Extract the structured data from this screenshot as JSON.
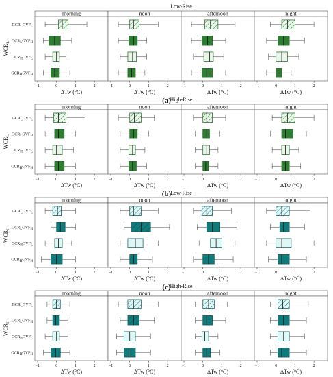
{
  "figure": {
    "panels": [
      {
        "letter": "(a)",
        "title": "Low-Rise",
        "ylabel_main": "WCR",
        "ylabel_sub": "L",
        "facecolor": "#2e7d32",
        "lightcolor": "#e8f5e9"
      },
      {
        "letter": "(b)",
        "title": "High-Rise",
        "ylabel_main": "WCR",
        "ylabel_sub": "L",
        "facecolor": "#2e7d32",
        "lightcolor": "#e8f5e9"
      },
      {
        "letter": "(c)",
        "title": "Low-Rise",
        "ylabel_main": "WCR",
        "ylabel_sub": "H",
        "facecolor": "#117a7a",
        "lightcolor": "#e0f7f7"
      },
      {
        "letter": "(d)",
        "title": "High-Rise",
        "ylabel_main": "WCR",
        "ylabel_sub": "H",
        "facecolor": "#117a7a",
        "lightcolor": "#e0f7f7"
      }
    ],
    "periods": [
      "morning",
      "noon",
      "afternoon",
      "night"
    ],
    "categories": [
      {
        "a": "GCR",
        "as": "L",
        "b": "GVF",
        "bs": "L",
        "style": "hatched-light"
      },
      {
        "a": "GCR",
        "as": "L",
        "b": "GVF",
        "bs": "H",
        "style": "solid"
      },
      {
        "a": "GCR",
        "as": "H",
        "b": "GVF",
        "bs": "L",
        "style": "light"
      },
      {
        "a": "GCR",
        "as": "H",
        "b": "GVF",
        "bs": "H",
        "style": "solid"
      }
    ],
    "xlabel": "ΔTw (°C)",
    "xticks": [
      "−1",
      "0",
      "1",
      "2"
    ]
  },
  "chart_data": [
    {
      "type": "box",
      "title": "Low-Rise",
      "ylabel": "WCR_L",
      "xlabel": "ΔTw (°C)",
      "xlim": [
        -1,
        2.5
      ],
      "categories": [
        "GCR_L GVF_L",
        "GCR_L GVF_H",
        "GCR_H GVF_L",
        "GCR_H GVF_H"
      ],
      "series": [
        {
          "name": "morning",
          "boxes": [
            {
              "whislo": -0.6,
              "q1": 0.1,
              "med": 0.3,
              "q3": 0.6,
              "whishi": 1.6
            },
            {
              "whislo": -0.7,
              "q1": -0.4,
              "med": -0.1,
              "q3": 0.2,
              "whishi": 0.8
            },
            {
              "whislo": -0.6,
              "q1": -0.2,
              "med": 0.0,
              "q3": 0.15,
              "whishi": 0.5
            },
            {
              "whislo": -0.7,
              "q1": -0.3,
              "med": -0.1,
              "q3": 0.15,
              "whishi": 0.7
            }
          ]
        },
        {
          "name": "noon",
          "boxes": [
            {
              "whislo": -0.6,
              "q1": 0.0,
              "med": 0.2,
              "q3": 0.5,
              "whishi": 1.5
            },
            {
              "whislo": -0.6,
              "q1": -0.05,
              "med": 0.2,
              "q3": 0.4,
              "whishi": 0.9
            },
            {
              "whislo": -0.5,
              "q1": -0.1,
              "med": 0.15,
              "q3": 0.35,
              "whishi": 0.9
            },
            {
              "whislo": -0.6,
              "q1": -0.1,
              "med": 0.1,
              "q3": 0.3,
              "whishi": 0.8
            }
          ]
        },
        {
          "name": "afternoon",
          "boxes": [
            {
              "whislo": -0.6,
              "q1": 0.1,
              "med": 0.4,
              "q3": 0.8,
              "whishi": 1.7
            },
            {
              "whislo": -0.6,
              "q1": -0.05,
              "med": 0.25,
              "q3": 0.5,
              "whishi": 1.2
            },
            {
              "whislo": -0.5,
              "q1": 0.05,
              "med": 0.35,
              "q3": 0.55,
              "whishi": 1.1
            },
            {
              "whislo": -0.6,
              "q1": -0.05,
              "med": 0.2,
              "q3": 0.5,
              "whishi": 1.2
            }
          ]
        },
        {
          "name": "night",
          "boxes": [
            {
              "whislo": -0.3,
              "q1": 0.3,
              "med": 0.6,
              "q3": 1.0,
              "whishi": 2.0
            },
            {
              "whislo": -0.5,
              "q1": 0.1,
              "med": 0.4,
              "q3": 0.7,
              "whishi": 1.5
            },
            {
              "whislo": -0.4,
              "q1": 0.0,
              "med": 0.3,
              "q3": 0.6,
              "whishi": 1.2
            },
            {
              "whislo": -0.5,
              "q1": 0.0,
              "med": 0.1,
              "q3": 0.3,
              "whishi": 0.8
            }
          ]
        }
      ]
    },
    {
      "type": "box",
      "title": "High-Rise",
      "ylabel": "WCR_L",
      "xlabel": "ΔTw (°C)",
      "xlim": [
        -1,
        2.5
      ],
      "categories": [
        "GCR_L GVF_L",
        "GCR_L GVF_H",
        "GCR_H GVF_L",
        "GCR_H GVF_H"
      ],
      "series": [
        {
          "name": "morning",
          "boxes": [
            {
              "whislo": -0.6,
              "q1": -0.15,
              "med": 0.1,
              "q3": 0.5,
              "whishi": 1.5
            },
            {
              "whislo": -0.6,
              "q1": -0.1,
              "med": 0.1,
              "q3": 0.4,
              "whishi": 1.0
            },
            {
              "whislo": -0.6,
              "q1": -0.2,
              "med": 0.0,
              "q3": 0.3,
              "whishi": 0.9
            },
            {
              "whislo": -0.6,
              "q1": -0.1,
              "med": 0.1,
              "q3": 0.4,
              "whishi": 1.0
            }
          ]
        },
        {
          "name": "noon",
          "boxes": [
            {
              "whislo": -0.6,
              "q1": 0.0,
              "med": 0.25,
              "q3": 0.6,
              "whishi": 1.3
            },
            {
              "whislo": -0.5,
              "q1": 0.0,
              "med": 0.2,
              "q3": 0.4,
              "whishi": 1.0
            },
            {
              "whislo": -0.5,
              "q1": -0.05,
              "med": 0.15,
              "q3": 0.3,
              "whishi": 0.8
            },
            {
              "whislo": -0.5,
              "q1": -0.05,
              "med": 0.15,
              "q3": 0.35,
              "whishi": 0.9
            }
          ]
        },
        {
          "name": "afternoon",
          "boxes": [
            {
              "whislo": -0.5,
              "q1": 0.0,
              "med": 0.2,
              "q3": 0.5,
              "whishi": 1.2
            },
            {
              "whislo": -0.4,
              "q1": 0.0,
              "med": 0.2,
              "q3": 0.35,
              "whishi": 0.9
            },
            {
              "whislo": -0.4,
              "q1": 0.0,
              "med": 0.2,
              "q3": 0.35,
              "whishi": 0.8
            },
            {
              "whislo": -0.4,
              "q1": 0.0,
              "med": 0.15,
              "q3": 0.3,
              "whishi": 0.8
            }
          ]
        },
        {
          "name": "night",
          "boxes": [
            {
              "whislo": -0.2,
              "q1": 0.3,
              "med": 0.6,
              "q3": 1.0,
              "whishi": 2.0
            },
            {
              "whislo": -0.3,
              "q1": 0.3,
              "med": 0.5,
              "q3": 0.9,
              "whishi": 1.6
            },
            {
              "whislo": -0.2,
              "q1": 0.3,
              "med": 0.5,
              "q3": 0.7,
              "whishi": 1.2
            },
            {
              "whislo": -0.2,
              "q1": 0.3,
              "med": 0.5,
              "q3": 0.7,
              "whishi": 1.3
            }
          ]
        }
      ]
    },
    {
      "type": "box",
      "title": "Low-Rise",
      "ylabel": "WCR_H",
      "xlabel": "ΔTw (°C)",
      "xlim": [
        -1,
        2.5
      ],
      "categories": [
        "GCR_L GVF_L",
        "GCR_L GVF_H",
        "GCR_H GVF_L",
        "GCR_H GVF_H"
      ],
      "series": [
        {
          "name": "morning",
          "boxes": [
            {
              "whislo": -0.6,
              "q1": -0.2,
              "med": 0.05,
              "q3": 0.25,
              "whishi": 1.0
            },
            {
              "whislo": -0.3,
              "q1": 0.0,
              "med": 0.2,
              "q3": 0.45,
              "whishi": 1.0
            },
            {
              "whislo": -0.6,
              "q1": -0.1,
              "med": 0.1,
              "q3": 0.3,
              "whishi": 0.8
            },
            {
              "whislo": -0.8,
              "q1": -0.3,
              "med": 0.0,
              "q3": 0.3,
              "whishi": 1.0
            }
          ]
        },
        {
          "name": "noon",
          "boxes": [
            {
              "whislo": -0.5,
              "q1": 0.0,
              "med": 0.2,
              "q3": 0.6,
              "whishi": 1.5
            },
            {
              "whislo": -0.3,
              "q1": 0.1,
              "med": 0.6,
              "q3": 1.1,
              "whishi": 2.1
            },
            {
              "whislo": -0.5,
              "q1": -0.1,
              "med": 0.3,
              "q3": 0.7,
              "whishi": 1.5
            },
            {
              "whislo": -0.5,
              "q1": 0.0,
              "med": 0.2,
              "q3": 0.4,
              "whishi": 1.2
            }
          ]
        },
        {
          "name": "afternoon",
          "boxes": [
            {
              "whislo": -0.5,
              "q1": -0.05,
              "med": 0.2,
              "q3": 0.5,
              "whishi": 1.5
            },
            {
              "whislo": -0.3,
              "q1": 0.2,
              "med": 0.5,
              "q3": 0.9,
              "whishi": 1.8
            },
            {
              "whislo": -0.2,
              "q1": 0.4,
              "med": 0.7,
              "q3": 1.0,
              "whishi": 1.7
            },
            {
              "whislo": -0.5,
              "q1": 0.0,
              "med": 0.3,
              "q3": 0.6,
              "whishi": 1.6
            }
          ]
        },
        {
          "name": "night",
          "boxes": [
            {
              "whislo": -0.5,
              "q1": 0.0,
              "med": 0.3,
              "q3": 0.7,
              "whishi": 1.8
            },
            {
              "whislo": -0.3,
              "q1": 0.2,
              "med": 0.4,
              "q3": 0.7,
              "whishi": 1.5
            },
            {
              "whislo": -0.5,
              "q1": 0.0,
              "med": 0.3,
              "q3": 0.8,
              "whishi": 2.0
            },
            {
              "whislo": -0.4,
              "q1": 0.1,
              "med": 0.3,
              "q3": 0.7,
              "whishi": 1.6
            }
          ]
        }
      ]
    },
    {
      "type": "box",
      "title": "High-Rise",
      "ylabel": "WCR_H",
      "xlabel": "ΔTw (°C)",
      "xlim": [
        -1,
        2.5
      ],
      "categories": [
        "GCR_L GVF_L",
        "GCR_L GVF_H",
        "GCR_H GVF_L",
        "GCR_H GVF_H"
      ],
      "series": [
        {
          "name": "morning",
          "boxes": [
            {
              "whislo": -0.5,
              "q1": -0.2,
              "med": 0.0,
              "q3": 0.2,
              "whishi": 0.7
            },
            {
              "whislo": -0.5,
              "q1": -0.2,
              "med": -0.05,
              "q3": 0.15,
              "whishi": 0.6
            },
            {
              "whislo": -0.6,
              "q1": -0.2,
              "med": 0.0,
              "q3": 0.15,
              "whishi": 0.6
            },
            {
              "whislo": -0.7,
              "q1": -0.3,
              "med": -0.05,
              "q3": 0.2,
              "whishi": 0.7
            }
          ]
        },
        {
          "name": "noon",
          "boxes": [
            {
              "whislo": -0.6,
              "q1": -0.1,
              "med": 0.2,
              "q3": 0.6,
              "whishi": 1.5
            },
            {
              "whislo": -0.5,
              "q1": -0.1,
              "med": 0.2,
              "q3": 0.5,
              "whishi": 1.3
            },
            {
              "whislo": -0.7,
              "q1": -0.3,
              "med": 0.0,
              "q3": 0.3,
              "whishi": 1.1
            },
            {
              "whislo": -0.7,
              "q1": -0.3,
              "med": -0.05,
              "q3": 0.3,
              "whishi": 1.1
            }
          ]
        },
        {
          "name": "afternoon",
          "boxes": [
            {
              "whislo": -0.4,
              "q1": 0.0,
              "med": 0.3,
              "q3": 0.6,
              "whishi": 1.3
            },
            {
              "whislo": -0.4,
              "q1": 0.0,
              "med": 0.2,
              "q3": 0.5,
              "whishi": 1.2
            },
            {
              "whislo": -0.4,
              "q1": -0.05,
              "med": 0.1,
              "q3": 0.3,
              "whishi": 0.8
            },
            {
              "whislo": -0.4,
              "q1": 0.0,
              "med": 0.2,
              "q3": 0.4,
              "whishi": 0.9
            }
          ]
        },
        {
          "name": "night",
          "boxes": [
            {
              "whislo": -0.3,
              "q1": 0.1,
              "med": 0.35,
              "q3": 0.7,
              "whishi": 1.7
            },
            {
              "whislo": -0.3,
              "q1": 0.1,
              "med": 0.4,
              "q3": 0.7,
              "whishi": 1.6
            },
            {
              "whislo": -0.3,
              "q1": 0.1,
              "med": 0.4,
              "q3": 0.7,
              "whishi": 1.5
            },
            {
              "whislo": -0.3,
              "q1": 0.1,
              "med": 0.3,
              "q3": 0.7,
              "whishi": 1.6
            }
          ]
        }
      ]
    }
  ]
}
